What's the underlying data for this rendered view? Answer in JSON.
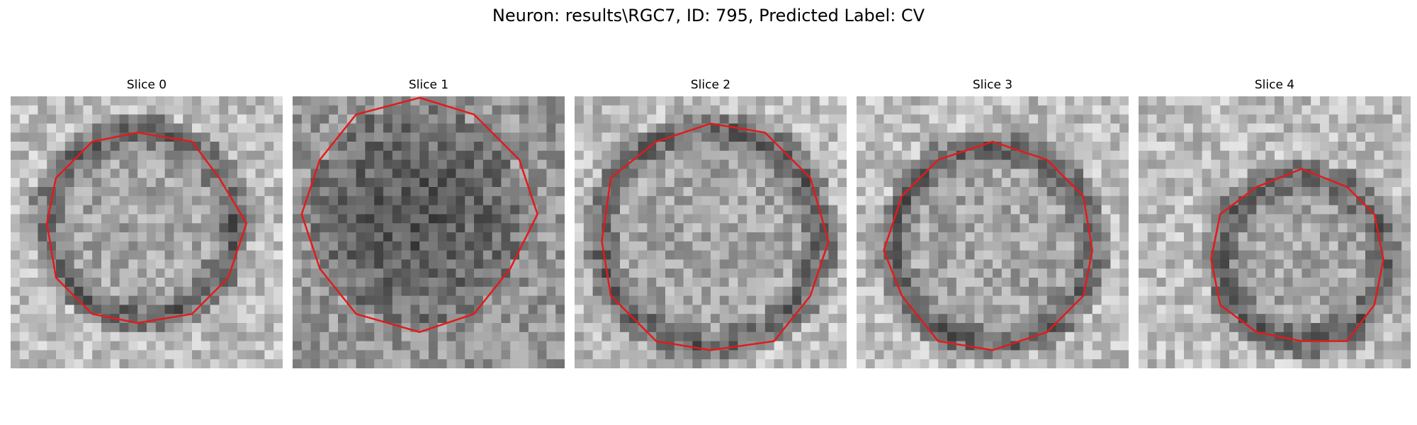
{
  "figure": {
    "title": "Neuron: results\\RGC7, ID: 795, Predicted Label: CV"
  },
  "panels": [
    {
      "title": "Slice 0",
      "seed": 11,
      "pattern": "ring",
      "ring_radius": 0.34,
      "center": [
        0.48,
        0.47
      ],
      "dark_center": false
    },
    {
      "title": "Slice 1",
      "seed": 23,
      "pattern": "blob",
      "ring_radius": 0.4,
      "center": [
        0.45,
        0.44
      ],
      "dark_center": true
    },
    {
      "title": "Slice 2",
      "seed": 37,
      "pattern": "ring",
      "ring_radius": 0.4,
      "center": [
        0.5,
        0.52
      ],
      "dark_center": false
    },
    {
      "title": "Slice 3",
      "seed": 41,
      "pattern": "ring",
      "ring_radius": 0.36,
      "center": [
        0.5,
        0.55
      ],
      "dark_center": false
    },
    {
      "title": "Slice 4",
      "seed": 59,
      "pattern": "ring",
      "ring_radius": 0.3,
      "center": [
        0.6,
        0.6
      ],
      "dark_center": false
    }
  ],
  "colors": {
    "contour": "#e31a1c"
  }
}
